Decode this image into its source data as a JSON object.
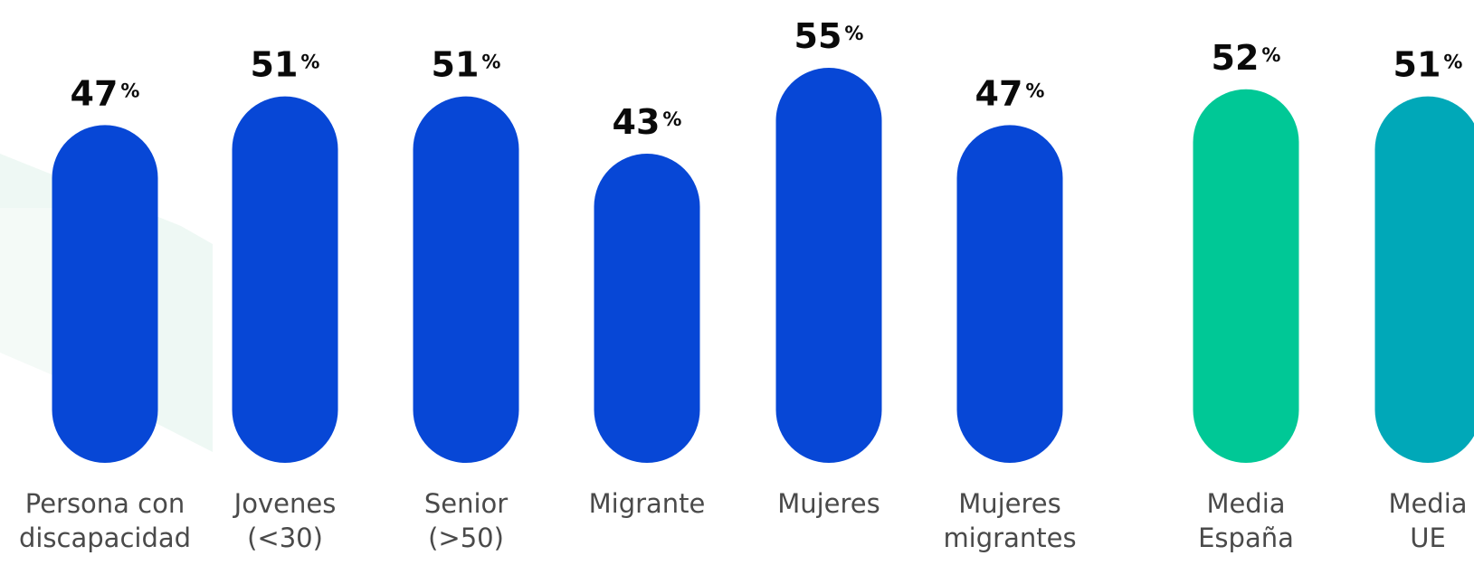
{
  "chart_data": {
    "type": "bar",
    "categories": [
      [
        "Persona con",
        "discapacidad"
      ],
      [
        "Jovenes",
        "(<30)"
      ],
      [
        "Senior",
        "(>50)"
      ],
      [
        "Migrante"
      ],
      [
        "Mujeres"
      ],
      [
        "Mujeres",
        "migrantes"
      ],
      [
        "Media",
        "España"
      ],
      [
        "Media",
        "UE"
      ]
    ],
    "values": [
      47,
      51,
      51,
      43,
      55,
      47,
      52,
      51
    ],
    "unit": "%",
    "bar_colors": [
      "#0747d6",
      "#0747d6",
      "#0747d6",
      "#0747d6",
      "#0747d6",
      "#0747d6",
      "#00c896",
      "#00a8b8"
    ],
    "ylim": [
      0,
      55
    ],
    "grid": false,
    "legend": "none"
  }
}
